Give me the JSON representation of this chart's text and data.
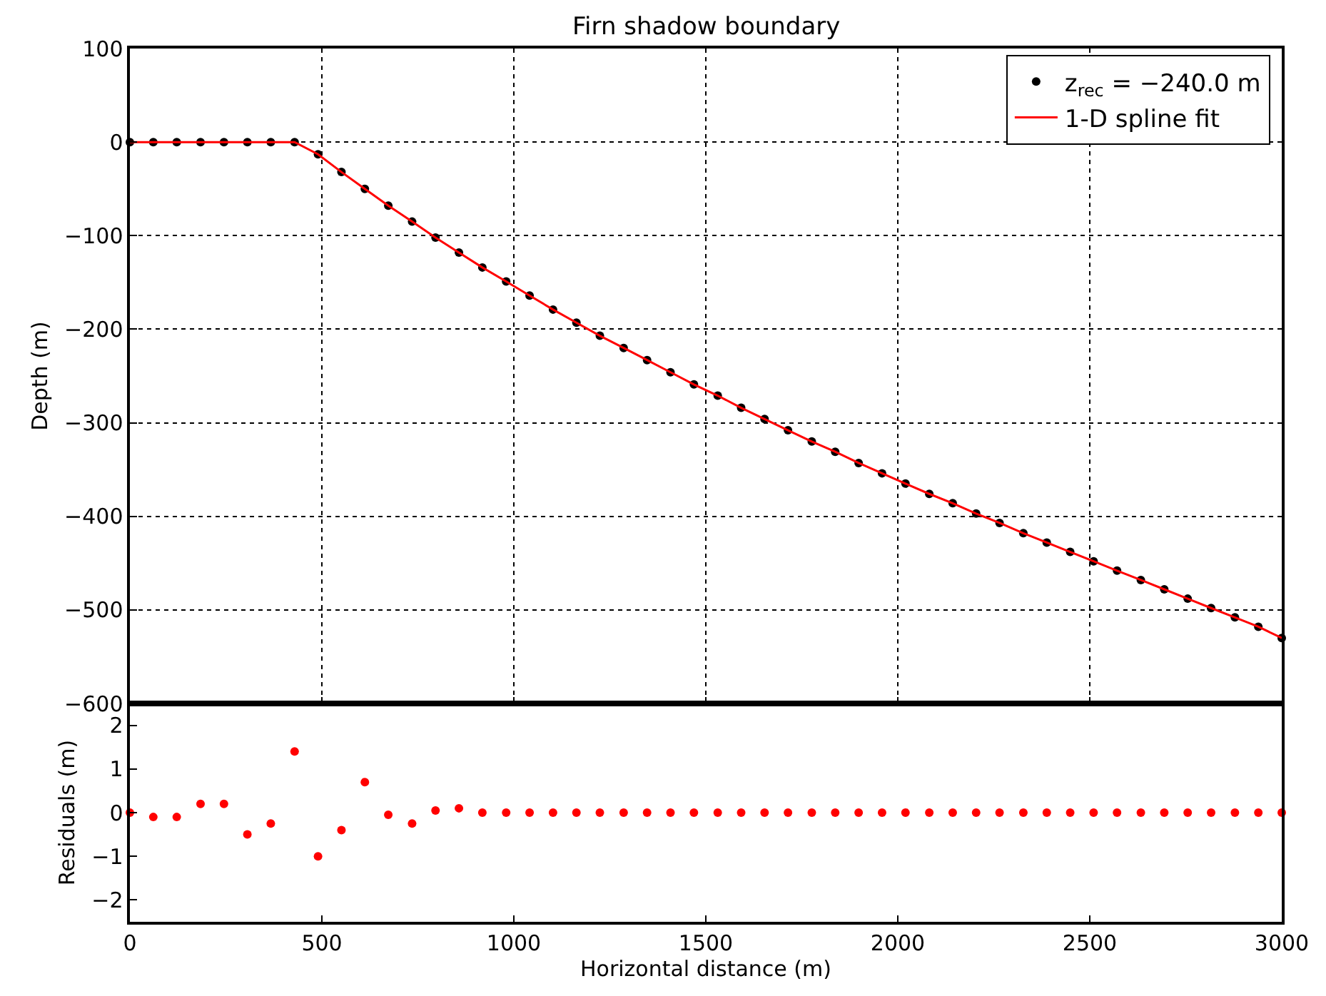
{
  "chart_data": [
    {
      "type": "scatter",
      "title": "Firn shadow boundary",
      "ylabel": "Depth (m)",
      "xlim": [
        0,
        3000
      ],
      "xticks": [
        0,
        500,
        1000,
        1500,
        2000,
        2500,
        3000
      ],
      "ylim": [
        -600,
        100
      ],
      "yticks": [
        -600,
        -500,
        -400,
        -300,
        -200,
        -100,
        0,
        100
      ],
      "grid": true,
      "legend": "top right",
      "tick_labels": "y",
      "x": [
        0,
        61,
        122,
        184,
        245,
        306,
        367,
        429,
        490,
        551,
        612,
        673,
        735,
        796,
        857,
        918,
        980,
        1041,
        1102,
        1163,
        1224,
        1286,
        1347,
        1408,
        1469,
        1531,
        1592,
        1653,
        1714,
        1776,
        1837,
        1898,
        1959,
        2020,
        2082,
        2143,
        2204,
        2265,
        2327,
        2388,
        2449,
        2510,
        2571,
        2633,
        2694,
        2755,
        2816,
        2878,
        2939,
        3000
      ],
      "series": [
        {
          "name": "z$_{rec}$ = −240.0 m",
          "color": "#000000",
          "marker": "circle",
          "values": [
            0,
            0,
            0,
            0,
            0,
            0,
            0,
            0,
            -13,
            -32,
            -50,
            -68,
            -85,
            -102,
            -118,
            -134,
            -149,
            -164,
            -179,
            -193,
            -207,
            -220,
            -233,
            -246,
            -259,
            -271,
            -284,
            -296,
            -308,
            -320,
            -331,
            -343,
            -354,
            -365,
            -376,
            -386,
            -397,
            -407,
            -418,
            -428,
            -438,
            -448,
            -458,
            -468,
            -478,
            -488,
            -498,
            -508,
            -518,
            -530
          ]
        },
        {
          "name": "1-D spline fit",
          "type": "line",
          "color": "#ff0000",
          "marker": "none",
          "values": [
            0,
            0,
            0,
            0,
            0,
            0,
            0,
            0,
            -13,
            -32,
            -50,
            -68,
            -85,
            -102,
            -118,
            -134,
            -149,
            -164,
            -179,
            -193,
            -207,
            -220,
            -233,
            -246,
            -259,
            -271,
            -284,
            -296,
            -308,
            -320,
            -331,
            -343,
            -354,
            -365,
            -376,
            -386,
            -397,
            -407,
            -418,
            -428,
            -438,
            -448,
            -458,
            -468,
            -478,
            -488,
            -498,
            -508,
            -518,
            -530
          ]
        }
      ]
    },
    {
      "type": "scatter",
      "xlabel": "Horizontal distance (m)",
      "ylabel": "Residuals (m)",
      "xlim": [
        0,
        3000
      ],
      "xticks": [
        0,
        500,
        1000,
        1500,
        2000,
        2500,
        3000
      ],
      "ylim": [
        -2.5,
        2.5
      ],
      "yticks": [
        -2,
        -1,
        0,
        1,
        2
      ],
      "marker": "circle",
      "x": [
        0,
        61,
        122,
        184,
        245,
        306,
        367,
        429,
        490,
        551,
        612,
        673,
        735,
        796,
        857,
        918,
        980,
        1041,
        1102,
        1163,
        1224,
        1286,
        1347,
        1408,
        1469,
        1531,
        1592,
        1653,
        1714,
        1776,
        1837,
        1898,
        1959,
        2020,
        2082,
        2143,
        2204,
        2265,
        2327,
        2388,
        2449,
        2510,
        2571,
        2633,
        2694,
        2755,
        2816,
        2878,
        2939,
        3000
      ],
      "series": [
        {
          "color": "#ff0000",
          "values": [
            0,
            -0.1,
            -0.1,
            0.2,
            0.2,
            -0.5,
            -0.25,
            1.4,
            -1.0,
            -0.4,
            0.7,
            -0.05,
            -0.25,
            0.05,
            0.1,
            0,
            0,
            0,
            0,
            0,
            0,
            0,
            0,
            0,
            0,
            0,
            0,
            0,
            0,
            0,
            0,
            0,
            0,
            0,
            0,
            0,
            0,
            0,
            0,
            0,
            0,
            0,
            0,
            0,
            0,
            0,
            0,
            0,
            0,
            0
          ]
        }
      ]
    }
  ]
}
